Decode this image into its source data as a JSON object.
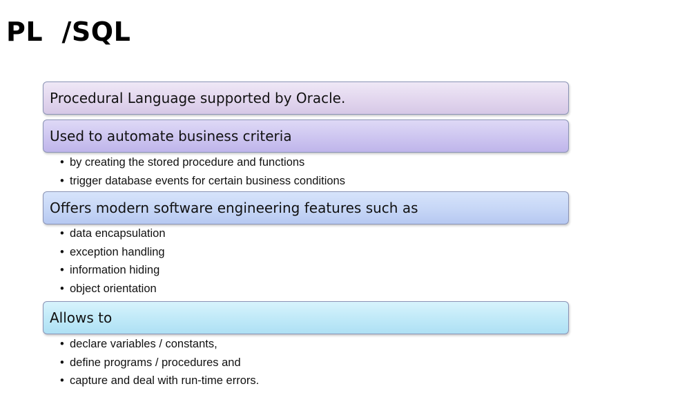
{
  "slide": {
    "title": "PL  /SQL"
  },
  "sections": [
    {
      "heading": "Procedural Language supported by Oracle.",
      "bullets": []
    },
    {
      "heading": "Used to automate business criteria",
      "bullets": [
        "by creating the stored procedure and functions",
        "trigger database events for certain business conditions"
      ]
    },
    {
      "heading": "Offers modern software engineering features such as",
      "bullets": [
        "data encapsulation",
        "exception handling",
        "information hiding",
        "object orientation"
      ]
    },
    {
      "heading": "Allows to",
      "bullets": [
        "declare variables / constants,",
        "define programs / procedures and",
        "capture and deal with run-time errors."
      ]
    }
  ],
  "colors": {
    "box_1": "#e2d6ee",
    "box_2": "#cdc5f0",
    "box_3": "#c6d6f6",
    "box_4": "#bfe9f8",
    "box_border": "#8a93b5"
  }
}
